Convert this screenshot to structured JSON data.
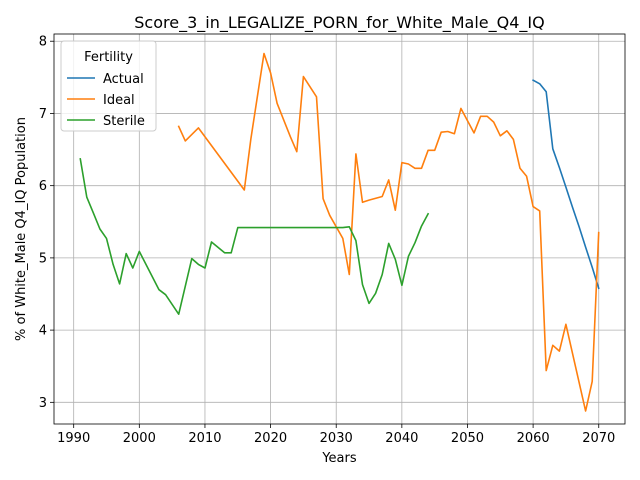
{
  "chart_data": {
    "type": "line",
    "title": "Score_3_in_LEGALIZE_PORN_for_White_Male_Q4_IQ",
    "xlabel": "Years",
    "ylabel": "% of White_Male Q4_IQ Population",
    "xlim": [
      1987,
      2074
    ],
    "ylim": [
      2.7,
      8.1
    ],
    "xticks": [
      1990,
      2000,
      2010,
      2020,
      2030,
      2040,
      2050,
      2060,
      2070
    ],
    "yticks": [
      3,
      4,
      5,
      6,
      7,
      8
    ],
    "grid": true,
    "legend": {
      "title": "Fertility",
      "placement": "top-left"
    },
    "series": [
      {
        "name": "Actual",
        "color": "#1f77b4",
        "x": [
          2060,
          2061,
          2062,
          2063,
          2064,
          2065,
          2066,
          2067,
          2068,
          2069,
          2070
        ],
        "y": [
          7.46,
          7.41,
          7.3,
          6.51,
          6.25,
          5.98,
          5.7,
          5.43,
          5.15,
          4.87,
          4.58
        ]
      },
      {
        "name": "Ideal",
        "color": "#ff7f0e",
        "x": [
          2006,
          2007,
          2009,
          2016,
          2017,
          2019,
          2020,
          2021,
          2023,
          2024,
          2025,
          2027,
          2028,
          2029,
          2031,
          2032,
          2033,
          2034,
          2035,
          2037,
          2038,
          2039,
          2040,
          2041,
          2042,
          2043,
          2044,
          2045,
          2046,
          2047,
          2048,
          2049,
          2051,
          2052,
          2053,
          2054,
          2055,
          2056,
          2057,
          2058,
          2059,
          2060,
          2061,
          2062,
          2063,
          2064,
          2065,
          2068,
          2069,
          2070
        ],
        "y": [
          6.82,
          6.62,
          6.8,
          5.94,
          6.65,
          7.83,
          7.56,
          7.14,
          6.68,
          6.47,
          7.51,
          7.23,
          5.82,
          5.59,
          5.27,
          4.77,
          6.44,
          5.77,
          5.8,
          5.85,
          6.08,
          5.66,
          6.32,
          6.3,
          6.24,
          6.24,
          6.49,
          6.49,
          6.74,
          6.75,
          6.72,
          7.07,
          6.73,
          6.96,
          6.96,
          6.88,
          6.69,
          6.76,
          6.64,
          6.24,
          6.13,
          5.71,
          5.65,
          3.44,
          3.79,
          3.71,
          4.08,
          2.88,
          3.29,
          5.35
        ]
      },
      {
        "name": "Sterile",
        "color": "#2ca02c",
        "x": [
          1991,
          1992,
          1993,
          1994,
          1995,
          1996,
          1997,
          1998,
          1999,
          2000,
          2003,
          2004,
          2006,
          2008,
          2009,
          2010,
          2011,
          2013,
          2014,
          2015,
          2016,
          2031,
          2032,
          2033,
          2034,
          2035,
          2036,
          2037,
          2038,
          2039,
          2040,
          2041,
          2042,
          2043,
          2044
        ],
        "y": [
          6.37,
          5.84,
          5.62,
          5.4,
          5.27,
          4.91,
          4.64,
          5.06,
          4.86,
          5.09,
          4.56,
          4.49,
          4.22,
          4.99,
          4.91,
          4.86,
          5.22,
          5.07,
          5.07,
          5.42,
          5.42,
          5.42,
          5.43,
          5.24,
          4.63,
          4.37,
          4.51,
          4.77,
          5.2,
          4.98,
          4.62,
          5.02,
          5.21,
          5.44,
          5.61
        ]
      }
    ]
  }
}
